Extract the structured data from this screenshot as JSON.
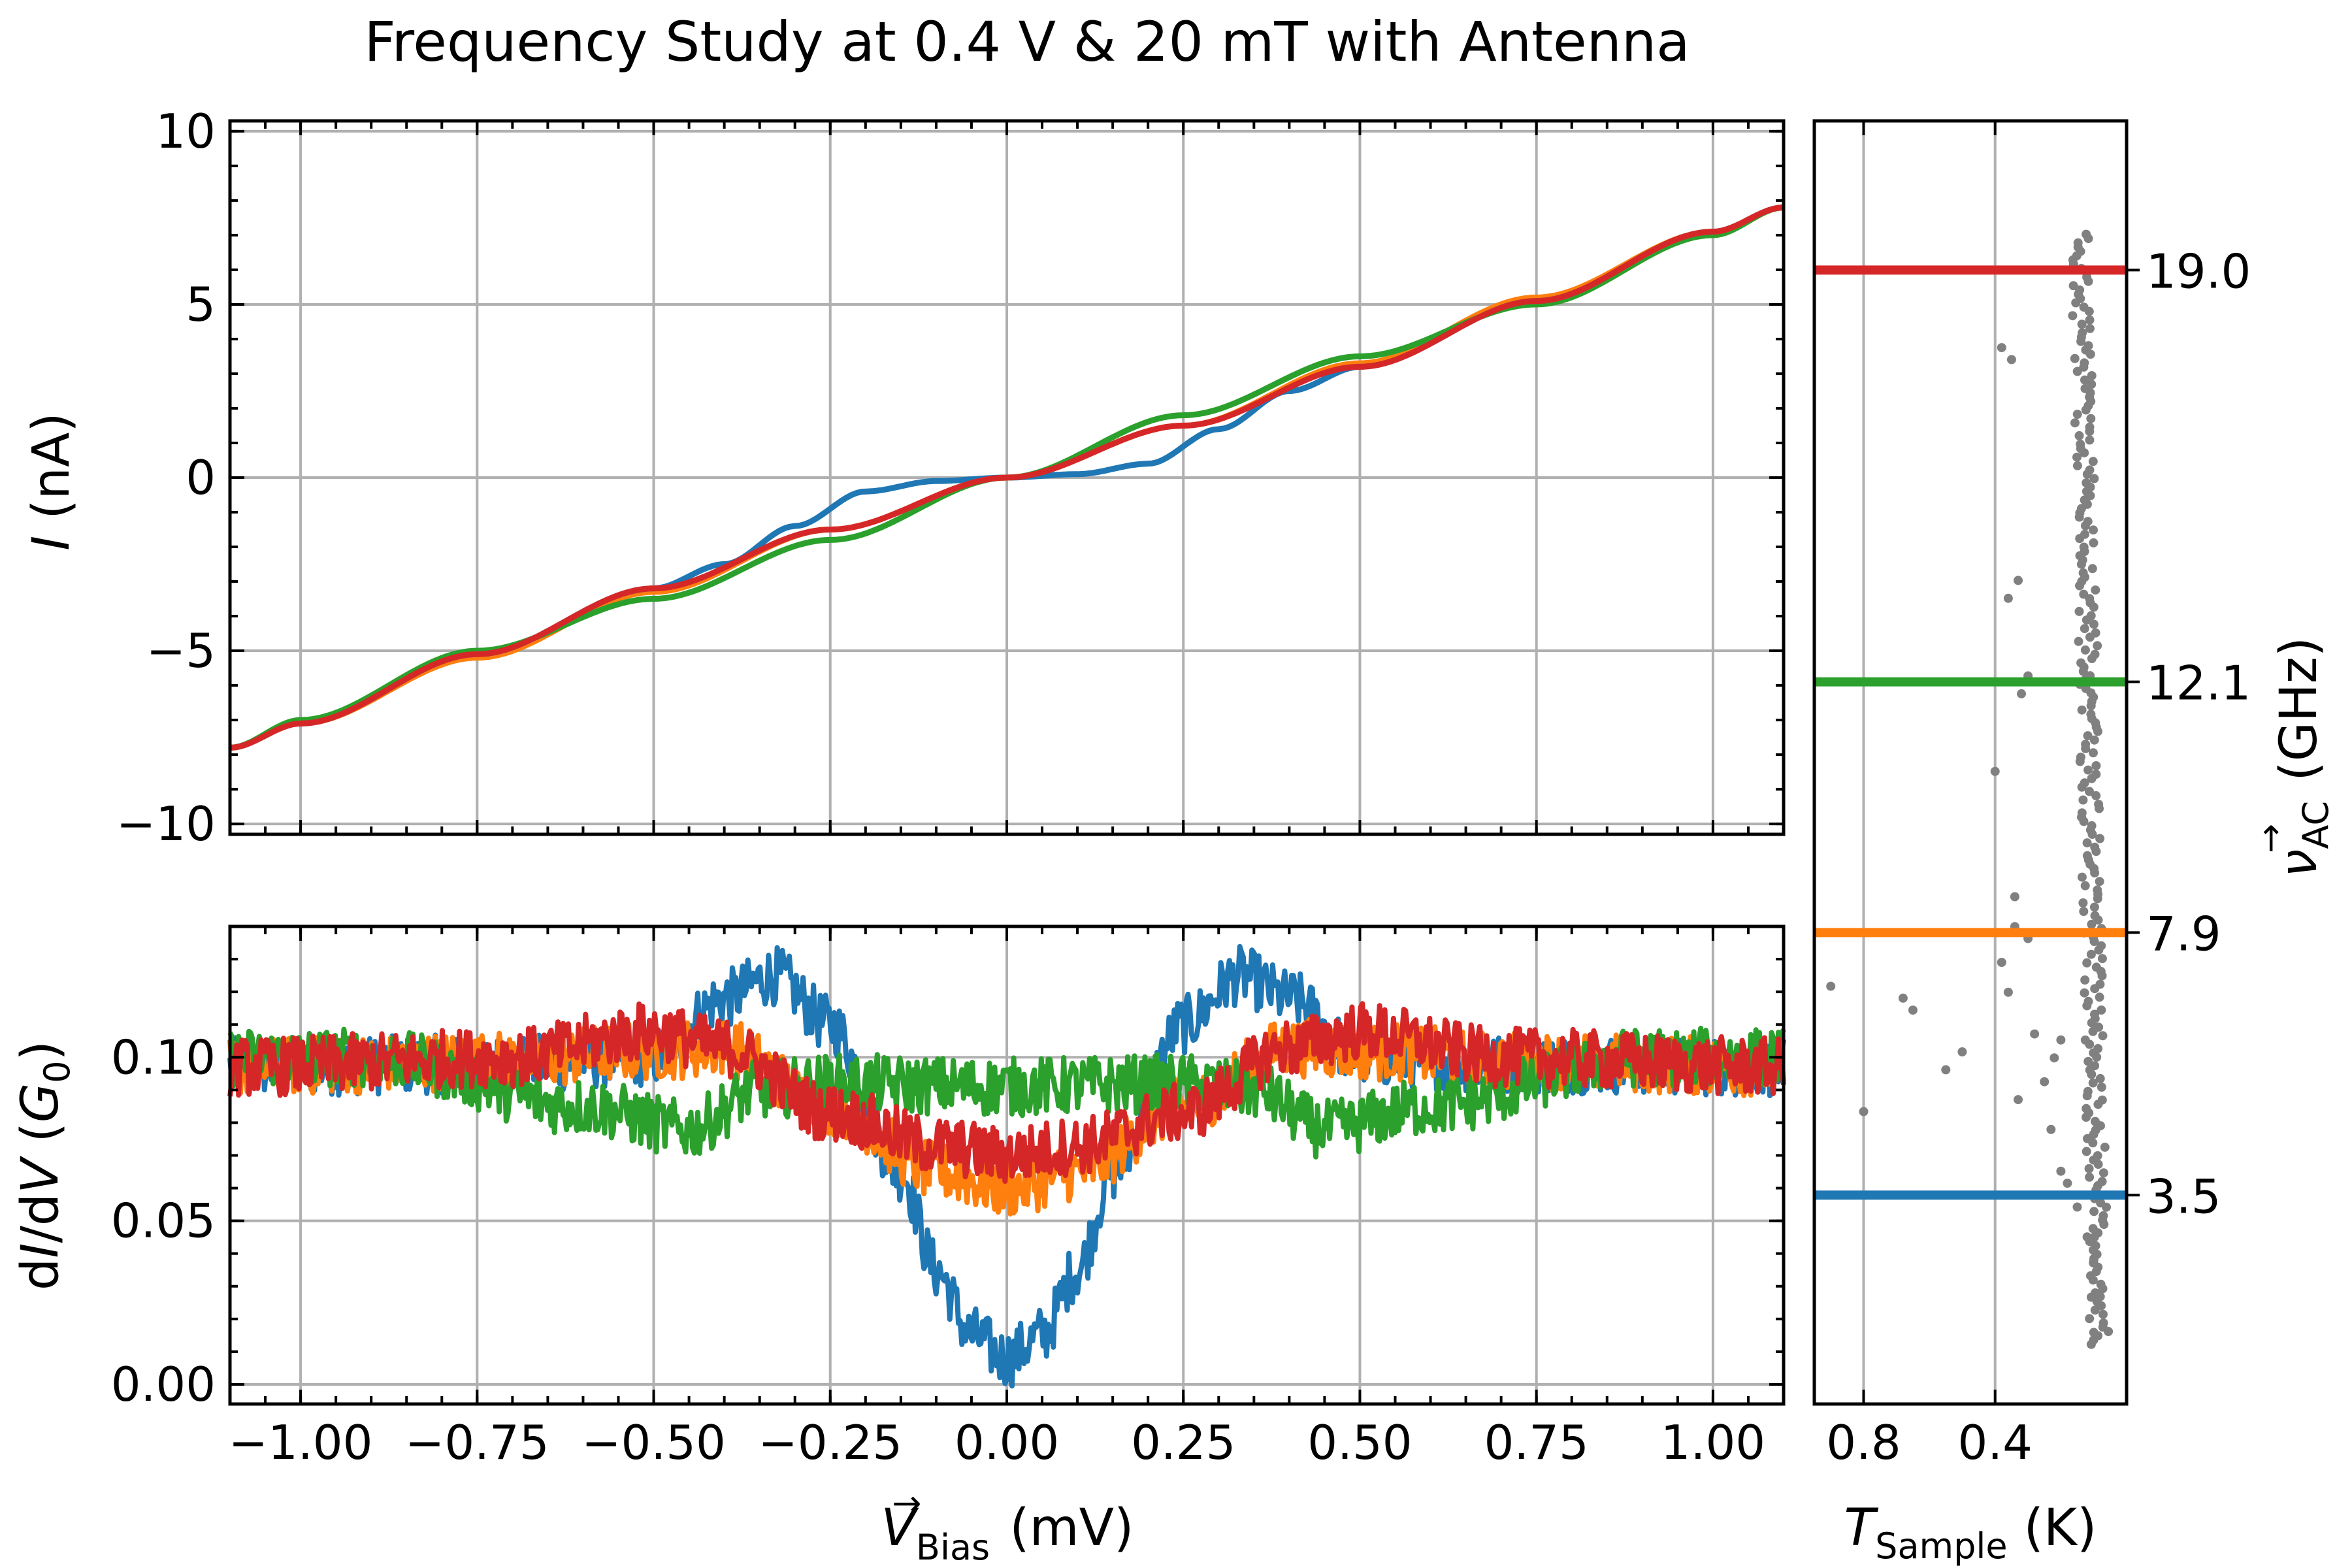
{
  "title": "Frequency Study at 0.4 V & 20 mT with Antenna",
  "colors": {
    "series": [
      "#1f77b4",
      "#ff7f0e",
      "#2ca02c",
      "#d62728"
    ],
    "grid": "#b0b0b0",
    "scatter": "#808080"
  },
  "labels": {
    "x_var": "V",
    "x_sub": "Bias",
    "x_arrow": "→",
    "x_unit": " (mV)",
    "top_y_var": "I",
    "top_y_unit": " (nA)",
    "bottom_y_pre": "d",
    "bottom_y_var1": "I",
    "bottom_y_mid": "/d",
    "bottom_y_var2": "V",
    "bottom_y_open": " (",
    "bottom_y_g": "G",
    "bottom_y_gsub": "0",
    "bottom_y_close": ")",
    "temp_var": "T",
    "temp_sub": "Sample",
    "temp_unit": " (K)",
    "nu_var": "ν",
    "nu_sub": "AC",
    "nu_arrow": "→",
    "nu_unit": " (GHz)"
  },
  "chart_data": [
    {
      "id": "iv",
      "type": "line",
      "xlabel": "V_Bias (mV)",
      "ylabel": "I (nA)",
      "xlim": [
        -1.1,
        1.1
      ],
      "ylim": [
        -10.3,
        10.3
      ],
      "xticks": [
        -1.0,
        -0.75,
        -0.5,
        -0.25,
        0.0,
        0.25,
        0.5,
        0.75,
        1.0
      ],
      "yticks": [
        10,
        5,
        0,
        -5,
        -10
      ],
      "ytick_labels": [
        "10",
        "5",
        "0",
        "−5",
        "−10"
      ],
      "grid": true,
      "series": [
        {
          "freq_ghz": 3.5,
          "x": [
            -1.1,
            -1.0,
            -0.75,
            -0.5,
            -0.4,
            -0.3,
            -0.2,
            -0.1,
            0.0,
            0.1,
            0.2,
            0.3,
            0.4,
            0.5,
            0.75,
            1.0,
            1.1
          ],
          "y": [
            -7.8,
            -7.1,
            -5.1,
            -3.2,
            -2.5,
            -1.4,
            -0.4,
            -0.1,
            0.0,
            0.1,
            0.4,
            1.4,
            2.5,
            3.2,
            5.1,
            7.1,
            7.8
          ]
        },
        {
          "freq_ghz": 7.9,
          "x": [
            -1.1,
            -1.0,
            -0.75,
            -0.5,
            -0.25,
            0.0,
            0.25,
            0.5,
            0.75,
            1.0,
            1.1
          ],
          "y": [
            -7.8,
            -7.1,
            -5.2,
            -3.3,
            -1.5,
            0.0,
            1.5,
            3.3,
            5.2,
            7.1,
            7.8
          ]
        },
        {
          "freq_ghz": 12.1,
          "x": [
            -1.1,
            -1.0,
            -0.75,
            -0.5,
            -0.25,
            0.0,
            0.25,
            0.5,
            0.75,
            1.0,
            1.1
          ],
          "y": [
            -7.8,
            -7.0,
            -5.0,
            -3.5,
            -1.8,
            0.0,
            1.8,
            3.5,
            5.0,
            7.0,
            7.8
          ]
        },
        {
          "freq_ghz": 19.0,
          "x": [
            -1.1,
            -1.0,
            -0.75,
            -0.5,
            -0.25,
            0.0,
            0.25,
            0.5,
            0.75,
            1.0,
            1.1
          ],
          "y": [
            -7.8,
            -7.1,
            -5.1,
            -3.2,
            -1.5,
            0.0,
            1.5,
            3.2,
            5.1,
            7.1,
            7.8
          ]
        }
      ]
    },
    {
      "id": "didv",
      "type": "line",
      "xlabel": "V_Bias (mV)",
      "ylabel": "dI/dV (G0)",
      "xlim": [
        -1.1,
        1.1
      ],
      "ylim": [
        -0.006,
        0.14
      ],
      "xticks": [
        -1.0,
        -0.75,
        -0.5,
        -0.25,
        0.0,
        0.25,
        0.5,
        0.75,
        1.0
      ],
      "xtick_labels": [
        "−1.00",
        "−0.75",
        "−0.50",
        "−0.25",
        "0.00",
        "0.25",
        "0.50",
        "0.75",
        "1.00"
      ],
      "yticks": [
        0.1,
        0.05,
        0.0
      ],
      "ytick_labels": [
        "0.10",
        "0.05",
        "0.00"
      ],
      "grid": true,
      "series": [
        {
          "freq_ghz": 3.5,
          "x": [
            -1.1,
            -0.7,
            -0.5,
            -0.4,
            -0.33,
            -0.25,
            -0.15,
            -0.1,
            -0.05,
            0.0,
            0.05,
            0.1,
            0.15,
            0.25,
            0.33,
            0.4,
            0.5,
            0.7,
            1.1
          ],
          "y": [
            0.097,
            0.098,
            0.1,
            0.118,
            0.125,
            0.11,
            0.065,
            0.035,
            0.015,
            0.008,
            0.015,
            0.035,
            0.065,
            0.11,
            0.125,
            0.118,
            0.1,
            0.098,
            0.097
          ]
        },
        {
          "freq_ghz": 7.9,
          "x": [
            -1.1,
            -0.7,
            -0.5,
            -0.4,
            -0.25,
            -0.1,
            0.0,
            0.1,
            0.25,
            0.4,
            0.5,
            0.7,
            1.1
          ],
          "y": [
            0.097,
            0.099,
            0.102,
            0.103,
            0.085,
            0.065,
            0.06,
            0.065,
            0.085,
            0.103,
            0.102,
            0.099,
            0.097
          ]
        },
        {
          "freq_ghz": 12.1,
          "x": [
            -1.1,
            -0.9,
            -0.6,
            -0.45,
            -0.35,
            -0.25,
            0.0,
            0.25,
            0.35,
            0.45,
            0.6,
            0.9,
            1.1
          ],
          "y": [
            0.1,
            0.1,
            0.085,
            0.078,
            0.09,
            0.092,
            0.091,
            0.092,
            0.09,
            0.078,
            0.085,
            0.1,
            0.1
          ]
        },
        {
          "freq_ghz": 19.0,
          "x": [
            -1.1,
            -0.7,
            -0.5,
            -0.4,
            -0.25,
            -0.1,
            0.0,
            0.1,
            0.25,
            0.4,
            0.5,
            0.7,
            1.1
          ],
          "y": [
            0.097,
            0.1,
            0.108,
            0.103,
            0.083,
            0.073,
            0.07,
            0.073,
            0.083,
            0.103,
            0.108,
            0.1,
            0.097
          ]
        }
      ]
    },
    {
      "id": "temperature",
      "type": "scatter",
      "xlabel": "T_Sample (K)",
      "ylabel": "ν_AC (GHz)",
      "xlim": [
        0.95,
        0.0
      ],
      "ylim": [
        0.0,
        21.5
      ],
      "xticks": [
        0.8,
        0.4
      ],
      "xtick_labels": [
        "0.8",
        "0.4"
      ],
      "grid": true,
      "hlines": [
        {
          "freq_ghz": 3.5,
          "label": "3.5"
        },
        {
          "freq_ghz": 7.9,
          "label": "7.9"
        },
        {
          "freq_ghz": 12.1,
          "label": "12.1"
        },
        {
          "freq_ghz": 19.0,
          "label": "19.0"
        }
      ],
      "points": [
        [
          0.9,
          7.0
        ],
        [
          0.8,
          4.9
        ],
        [
          0.68,
          6.8
        ],
        [
          0.65,
          6.6
        ],
        [
          0.55,
          5.6
        ],
        [
          0.5,
          5.9
        ],
        [
          0.4,
          10.6
        ],
        [
          0.38,
          7.4
        ],
        [
          0.36,
          6.9
        ],
        [
          0.34,
          8.5
        ],
        [
          0.33,
          5.1
        ],
        [
          0.32,
          11.9
        ],
        [
          0.3,
          7.8
        ],
        [
          0.28,
          6.2
        ],
        [
          0.3,
          12.2
        ],
        [
          0.33,
          13.8
        ],
        [
          0.36,
          13.5
        ],
        [
          0.38,
          17.7
        ],
        [
          0.35,
          17.5
        ],
        [
          0.34,
          8.0
        ],
        [
          0.25,
          5.4
        ],
        [
          0.22,
          5.8
        ],
        [
          0.2,
          6.1
        ],
        [
          0.23,
          4.6
        ],
        [
          0.2,
          3.9
        ],
        [
          0.18,
          3.7
        ],
        [
          0.15,
          3.3
        ],
        [
          0.1,
          2.4
        ],
        [
          0.08,
          1.8
        ],
        [
          0.1,
          1.2
        ],
        [
          0.12,
          2.8
        ],
        [
          0.1,
          3.5
        ]
      ],
      "scatter_trend": {
        "t_min": 0.06,
        "t_max": 0.26,
        "freq_min": 1.0,
        "freq_max": 19.6
      }
    }
  ]
}
